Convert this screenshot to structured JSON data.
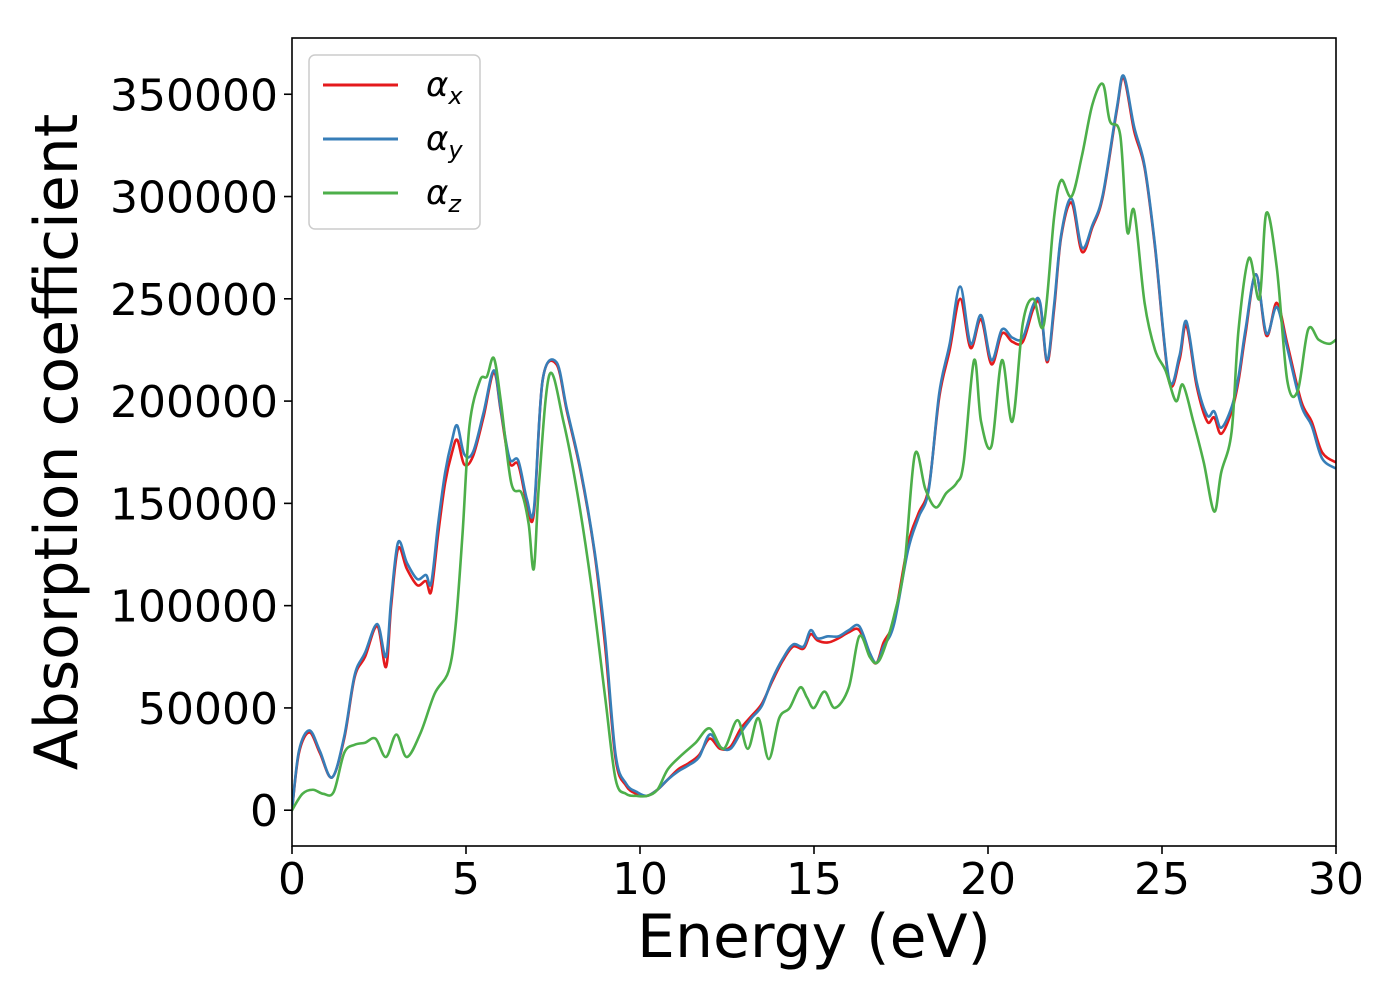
{
  "chart_data": {
    "type": "line",
    "xlabel": "Energy (eV)",
    "ylabel": "Absorption coefficient",
    "xlim": [
      0,
      30
    ],
    "ylim": [
      -17500,
      377500
    ],
    "xticks": [
      0,
      5,
      10,
      15,
      20,
      25,
      30
    ],
    "xtick_labels": [
      "0",
      "5",
      "10",
      "15",
      "20",
      "25",
      "30"
    ],
    "yticks": [
      0,
      50000,
      100000,
      150000,
      200000,
      250000,
      300000,
      350000
    ],
    "ytick_labels": [
      "0",
      "50000",
      "100000",
      "150000",
      "200000",
      "250000",
      "300000",
      "350000"
    ],
    "grid": false,
    "legend_position": "upper-left",
    "series": [
      {
        "name": "α_x",
        "legend_main": "α",
        "legend_sub": "x",
        "color": "#e41a1c",
        "x": [
          0,
          0.2,
          0.5,
          0.8,
          1.15,
          1.5,
          1.8,
          2.1,
          2.45,
          2.7,
          2.85,
          3.05,
          3.3,
          3.6,
          3.85,
          4.0,
          4.2,
          4.4,
          4.6,
          4.75,
          4.95,
          5.2,
          5.5,
          5.8,
          6.0,
          6.25,
          6.5,
          6.75,
          6.95,
          7.2,
          7.6,
          7.9,
          8.3,
          8.7,
          9.0,
          9.3,
          9.6,
          9.9,
          10.2,
          10.5,
          10.8,
          11.1,
          11.4,
          11.7,
          12.0,
          12.3,
          12.6,
          12.9,
          13.2,
          13.5,
          13.8,
          14.1,
          14.4,
          14.7,
          14.9,
          15.1,
          15.4,
          15.7,
          16.0,
          16.3,
          16.6,
          16.8,
          17.0,
          17.3,
          17.7,
          18.0,
          18.3,
          18.6,
          18.9,
          19.2,
          19.5,
          19.8,
          20.1,
          20.4,
          20.7,
          21.0,
          21.3,
          21.5,
          21.7,
          21.9,
          22.1,
          22.4,
          22.7,
          23.0,
          23.3,
          23.7,
          23.9,
          24.2,
          24.5,
          24.8,
          25.2,
          25.5,
          25.7,
          26.0,
          26.3,
          26.5,
          26.7,
          27.0,
          27.2,
          27.4,
          27.7,
          28.0,
          28.3,
          28.6,
          29.0,
          29.3,
          29.6,
          30.0
        ],
        "y": [
          0,
          28000,
          38000,
          28000,
          16000,
          35000,
          65000,
          75000,
          90000,
          70000,
          100000,
          128000,
          118000,
          110000,
          112000,
          107000,
          135000,
          160000,
          175000,
          181000,
          169000,
          173000,
          192000,
          214000,
          195000,
          170000,
          169000,
          150000,
          145000,
          210000,
          218000,
          195000,
          165000,
          125000,
          80000,
          25000,
          12000,
          8000,
          7000,
          10000,
          15000,
          20000,
          23000,
          27000,
          35000,
          30000,
          31000,
          40000,
          46000,
          52000,
          63000,
          73000,
          80000,
          79000,
          86000,
          83000,
          82000,
          84000,
          87000,
          88000,
          76000,
          72000,
          82000,
          93000,
          130000,
          145000,
          158000,
          202000,
          225000,
          250000,
          226000,
          240000,
          218000,
          233000,
          229000,
          229000,
          245000,
          247000,
          219000,
          245000,
          280000,
          297000,
          273000,
          285000,
          300000,
          342000,
          358000,
          332000,
          314000,
          275000,
          210000,
          220000,
          237000,
          207000,
          190000,
          192000,
          184000,
          195000,
          210000,
          233000,
          262000,
          232000,
          248000,
          228000,
          200000,
          190000,
          175000,
          170000
        ]
      },
      {
        "name": "α_y",
        "legend_main": "α",
        "legend_sub": "y",
        "color": "#377eb8",
        "x": [
          0,
          0.2,
          0.5,
          0.8,
          1.15,
          1.5,
          1.8,
          2.1,
          2.45,
          2.7,
          2.85,
          3.05,
          3.3,
          3.6,
          3.85,
          4.0,
          4.2,
          4.4,
          4.6,
          4.75,
          4.95,
          5.2,
          5.5,
          5.8,
          6.0,
          6.25,
          6.5,
          6.75,
          6.95,
          7.2,
          7.6,
          7.9,
          8.3,
          8.7,
          9.0,
          9.3,
          9.6,
          9.9,
          10.2,
          10.5,
          10.8,
          11.1,
          11.4,
          11.7,
          12.0,
          12.3,
          12.6,
          12.9,
          13.2,
          13.5,
          13.8,
          14.1,
          14.4,
          14.7,
          14.9,
          15.1,
          15.4,
          15.7,
          16.0,
          16.3,
          16.6,
          16.8,
          17.0,
          17.3,
          17.7,
          18.0,
          18.3,
          18.6,
          18.9,
          19.2,
          19.5,
          19.8,
          20.1,
          20.4,
          20.7,
          21.0,
          21.3,
          21.5,
          21.7,
          21.9,
          22.1,
          22.4,
          22.7,
          23.0,
          23.3,
          23.7,
          23.9,
          24.2,
          24.5,
          24.8,
          25.2,
          25.5,
          25.7,
          26.0,
          26.3,
          26.5,
          26.7,
          27.0,
          27.2,
          27.4,
          27.7,
          28.0,
          28.3,
          28.6,
          29.0,
          29.3,
          29.6,
          30.0
        ],
        "y": [
          0,
          29000,
          39000,
          29000,
          16000,
          36000,
          66000,
          77000,
          91000,
          75000,
          103000,
          131000,
          121000,
          113000,
          115000,
          111000,
          140000,
          165000,
          181000,
          188000,
          174000,
          175000,
          194000,
          215000,
          196000,
          172000,
          171000,
          152000,
          147000,
          210000,
          219000,
          196000,
          166000,
          126000,
          84000,
          27000,
          13000,
          9000,
          7000,
          10000,
          15000,
          19000,
          22000,
          26000,
          37000,
          31000,
          30000,
          38000,
          45000,
          51000,
          64000,
          74000,
          81000,
          80000,
          88000,
          84000,
          85000,
          85000,
          88000,
          90000,
          77000,
          72000,
          80000,
          91000,
          127000,
          143000,
          157000,
          204000,
          228000,
          256000,
          228000,
          242000,
          220000,
          235000,
          231000,
          231000,
          247000,
          248000,
          220000,
          247000,
          281000,
          299000,
          275000,
          286000,
          301000,
          343000,
          359000,
          334000,
          315000,
          276000,
          211000,
          222000,
          239000,
          209000,
          193000,
          195000,
          187000,
          197000,
          212000,
          235000,
          262000,
          233000,
          246000,
          226000,
          198000,
          188000,
          172000,
          167000
        ]
      },
      {
        "name": "α_z",
        "legend_main": "α",
        "legend_sub": "z",
        "color": "#4daf4a",
        "x": [
          0,
          0.3,
          0.6,
          0.9,
          1.2,
          1.5,
          1.8,
          2.1,
          2.4,
          2.7,
          3.0,
          3.3,
          3.7,
          4.1,
          4.5,
          4.7,
          4.9,
          5.1,
          5.4,
          5.6,
          5.8,
          6.0,
          6.3,
          6.6,
          6.8,
          6.95,
          7.1,
          7.4,
          7.8,
          8.2,
          8.6,
          9.0,
          9.3,
          9.6,
          9.9,
          10.2,
          10.5,
          10.8,
          11.2,
          11.6,
          12.0,
          12.4,
          12.8,
          13.1,
          13.4,
          13.7,
          14.0,
          14.3,
          14.6,
          14.8,
          15.0,
          15.3,
          15.6,
          16.0,
          16.3,
          16.6,
          16.8,
          17.0,
          17.3,
          17.6,
          17.9,
          18.2,
          18.5,
          18.8,
          19.1,
          19.3,
          19.6,
          19.8,
          20.1,
          20.4,
          20.7,
          21.0,
          21.3,
          21.6,
          21.9,
          22.1,
          22.4,
          22.7,
          23.0,
          23.3,
          23.5,
          23.8,
          24.0,
          24.2,
          24.5,
          24.8,
          25.1,
          25.4,
          25.6,
          25.9,
          26.2,
          26.5,
          26.7,
          27.0,
          27.2,
          27.5,
          27.8,
          28.0,
          28.3,
          28.6,
          28.9,
          29.2,
          29.5,
          29.8,
          30.0
        ],
        "y": [
          0,
          8000,
          10000,
          8000,
          9000,
          28000,
          32000,
          33000,
          35000,
          26000,
          37000,
          26000,
          38000,
          57000,
          68000,
          90000,
          135000,
          188000,
          210000,
          212000,
          221000,
          200000,
          160000,
          155000,
          140000,
          118000,
          160000,
          213000,
          190000,
          155000,
          110000,
          55000,
          15000,
          8000,
          7000,
          7000,
          10000,
          20000,
          27000,
          33000,
          40000,
          30000,
          44000,
          30000,
          45000,
          25000,
          45000,
          50000,
          60000,
          55000,
          50000,
          58000,
          50000,
          60000,
          85000,
          75000,
          72000,
          78000,
          95000,
          120000,
          174000,
          157000,
          148000,
          155000,
          160000,
          170000,
          220000,
          190000,
          178000,
          220000,
          190000,
          238000,
          250000,
          237000,
          290000,
          308000,
          300000,
          320000,
          345000,
          355000,
          337000,
          330000,
          283000,
          293000,
          248000,
          225000,
          215000,
          200000,
          208000,
          190000,
          170000,
          146000,
          165000,
          185000,
          235000,
          270000,
          250000,
          292000,
          265000,
          210000,
          205000,
          235000,
          230000,
          228000,
          230000
        ]
      }
    ]
  }
}
